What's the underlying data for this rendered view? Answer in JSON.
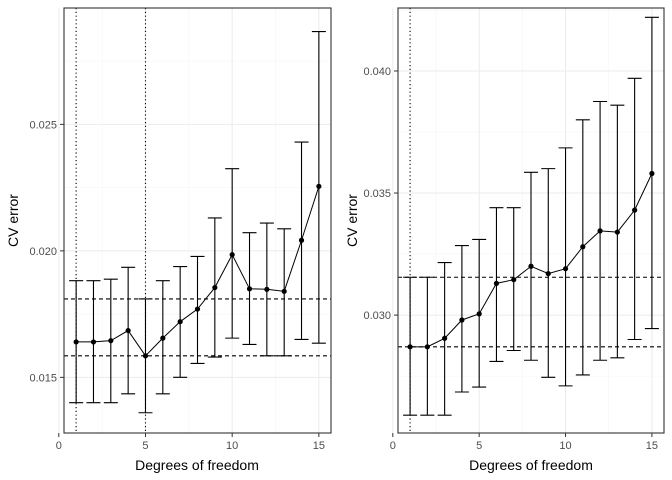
{
  "chart_data": [
    {
      "type": "line",
      "title": "",
      "xlabel": "Degrees of freedom",
      "ylabel": "CV error",
      "xlim": [
        0.3,
        15.7
      ],
      "ylim": [
        0.0128,
        0.0296
      ],
      "x_ticks": [
        0,
        5,
        10,
        15
      ],
      "x_tick_labels": [
        "0",
        "5",
        "10",
        "15"
      ],
      "y_ticks": [
        0.015,
        0.02,
        0.025
      ],
      "y_tick_labels": [
        "0.015",
        "0.020",
        "0.025"
      ],
      "grid": true,
      "x": [
        1,
        2,
        3,
        4,
        5,
        6,
        7,
        8,
        9,
        10,
        11,
        12,
        13,
        14,
        15
      ],
      "values": [
        0.0164,
        0.0164,
        0.01645,
        0.01685,
        0.01585,
        0.01655,
        0.0172,
        0.0177,
        0.01855,
        0.01985,
        0.0185,
        0.01848,
        0.0184,
        0.02042,
        0.02255
      ],
      "error_lower": [
        0.014,
        0.014,
        0.014,
        0.01435,
        0.0136,
        0.01435,
        0.015,
        0.01555,
        0.0158,
        0.01655,
        0.0163,
        0.01585,
        0.01585,
        0.0165,
        0.01635
      ],
      "error_upper": [
        0.01882,
        0.01882,
        0.01888,
        0.01935,
        0.0181,
        0.01882,
        0.01938,
        0.01978,
        0.0213,
        0.02325,
        0.02072,
        0.0211,
        0.02087,
        0.0243,
        0.02867
      ],
      "hlines": [
        0.0181,
        0.01585
      ],
      "vlines": [
        1,
        5
      ]
    },
    {
      "type": "line",
      "title": "",
      "xlabel": "Degrees of freedom",
      "ylabel": "CV error",
      "xlim": [
        0.3,
        15.7
      ],
      "ylim": [
        0.02517,
        0.04258
      ],
      "x_ticks": [
        0,
        5,
        10,
        15
      ],
      "x_tick_labels": [
        "0",
        "5",
        "10",
        "15"
      ],
      "y_ticks": [
        0.03,
        0.035,
        0.04
      ],
      "y_tick_labels": [
        "0.030",
        "0.035",
        "0.040"
      ],
      "grid": true,
      "x": [
        1,
        2,
        3,
        4,
        5,
        6,
        7,
        8,
        9,
        10,
        11,
        12,
        13,
        14,
        15
      ],
      "values": [
        0.0287,
        0.0287,
        0.02905,
        0.0298,
        0.03005,
        0.0313,
        0.03145,
        0.032,
        0.0317,
        0.0319,
        0.0328,
        0.03345,
        0.0334,
        0.0343,
        0.0358
      ],
      "error_lower": [
        0.0259,
        0.0259,
        0.0259,
        0.02685,
        0.02705,
        0.0281,
        0.02855,
        0.02815,
        0.02745,
        0.0271,
        0.02755,
        0.02815,
        0.02825,
        0.029,
        0.02945
      ],
      "error_upper": [
        0.03155,
        0.03155,
        0.03215,
        0.03285,
        0.0331,
        0.0344,
        0.0344,
        0.03585,
        0.036,
        0.03685,
        0.038,
        0.03875,
        0.0386,
        0.0397,
        0.0422
      ],
      "hlines": [
        0.03155,
        0.0287
      ],
      "vlines": [
        1
      ]
    }
  ]
}
